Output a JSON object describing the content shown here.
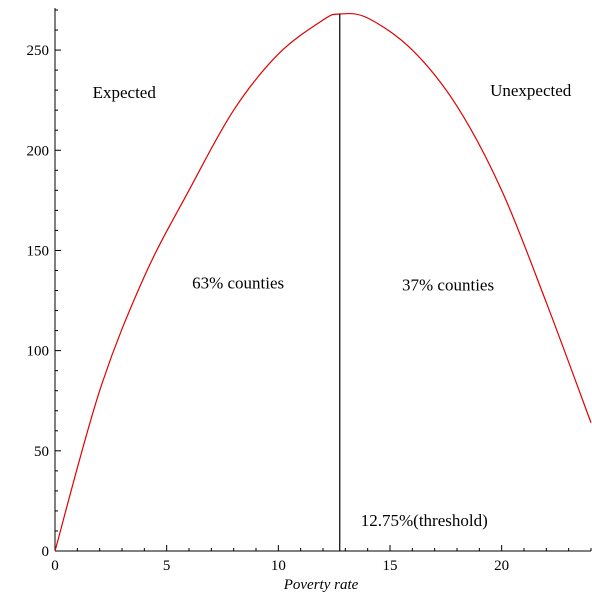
{
  "chart_data": {
    "type": "line",
    "title": "",
    "xlabel": "Poverty rate",
    "ylabel": "",
    "xlim": [
      0,
      24
    ],
    "ylim": [
      0,
      270
    ],
    "xticks": [
      0,
      5,
      10,
      15,
      20
    ],
    "yticks": [
      0,
      50,
      100,
      150,
      200,
      250
    ],
    "grid": false,
    "series": [
      {
        "color": "#e00000",
        "x": [
          0,
          2,
          4,
          6,
          8,
          10,
          12,
          12.75,
          14,
          16,
          18,
          20,
          22,
          24
        ],
        "y": [
          0,
          80,
          137,
          180,
          220,
          248,
          265,
          268,
          266,
          250,
          222,
          180,
          124,
          64
        ]
      }
    ],
    "threshold": {
      "x": 12.75,
      "color": "#000000",
      "label": "12.75%(threshold)"
    },
    "annotations": [
      {
        "text": "Expected",
        "x": 3.1,
        "y": 229
      },
      {
        "text": "Unexpected",
        "x": 21.3,
        "y": 230
      },
      {
        "text": "63% counties",
        "x": 8.2,
        "y": 134
      },
      {
        "text": "37% counties",
        "x": 17.6,
        "y": 133
      }
    ]
  }
}
